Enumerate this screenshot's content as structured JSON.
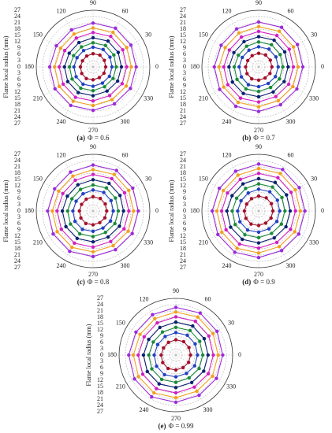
{
  "charts": [
    {
      "chart_data": {
        "type": "polar",
        "label": "(a)",
        "caption": "Φ = 0.6",
        "y_label": "Flame local radius (mm)",
        "theta": [
          0,
          30,
          60,
          90,
          120,
          150,
          180,
          210,
          240,
          270,
          300,
          330
        ],
        "rlim": [
          0,
          27
        ],
        "rticks": [
          0,
          3,
          6,
          9,
          12,
          15,
          18,
          21,
          24,
          27
        ],
        "grid": true,
        "series": [
          {
            "color": "#a3102c",
            "values": [
              6,
              6.2,
              6.5,
              6.3,
              6,
              5.8,
              6,
              6.2,
              6.4,
              6.1,
              5.9,
              6
            ]
          },
          {
            "color": "#2140c0",
            "values": [
              9,
              9.3,
              9.6,
              9.4,
              9,
              8.8,
              9.1,
              9.3,
              9.5,
              9.2,
              8.9,
              9
            ]
          },
          {
            "color": "#1a8a3a",
            "values": [
              11,
              11.4,
              11.8,
              11.5,
              11,
              10.7,
              11.2,
              11.5,
              11.7,
              11.3,
              10.9,
              11
            ]
          },
          {
            "color": "#0b2070",
            "values": [
              13.5,
              13.8,
              14.2,
              13.9,
              13.4,
              13.1,
              13.6,
              13.9,
              14.1,
              13.7,
              13.3,
              13.5
            ]
          },
          {
            "color": "#d020c0",
            "values": [
              16,
              16.3,
              16.8,
              16.4,
              15.9,
              15.6,
              16.1,
              16.4,
              16.7,
              16.2,
              15.8,
              16
            ]
          },
          {
            "color": "#f0a020",
            "values": [
              18.2,
              18.5,
              19,
              18.6,
              18.1,
              17.8,
              18.3,
              18.6,
              18.9,
              18.4,
              18,
              18.2
            ]
          },
          {
            "color": "#9a2ad8",
            "values": [
              20.5,
              20.8,
              21.3,
              20.9,
              20.4,
              20.1,
              20.6,
              20.9,
              21.2,
              20.7,
              20.3,
              20.5
            ]
          }
        ]
      }
    },
    {
      "chart_data": {
        "type": "polar",
        "label": "(b)",
        "caption": "Φ = 0.7",
        "y_label": "Flame local radius (mm)",
        "theta": [
          0,
          30,
          60,
          90,
          120,
          150,
          180,
          210,
          240,
          270,
          300,
          330
        ],
        "rlim": [
          0,
          27
        ],
        "rticks": [
          0,
          3,
          6,
          9,
          12,
          15,
          18,
          21,
          24,
          27
        ],
        "grid": true,
        "series": [
          {
            "color": "#a3102c",
            "values": [
              6.3,
              6.4,
              6.6,
              6.5,
              6.2,
              6,
              6.2,
              6.4,
              6.6,
              6.3,
              6.1,
              6.2
            ]
          },
          {
            "color": "#2140c0",
            "values": [
              9.3,
              9.5,
              9.8,
              9.6,
              9.2,
              9,
              9.3,
              9.5,
              9.8,
              9.4,
              9.1,
              9.2
            ]
          },
          {
            "color": "#1a8a3a",
            "values": [
              11.5,
              11.8,
              12.2,
              11.9,
              11.4,
              11.1,
              11.6,
              11.9,
              12.1,
              11.7,
              11.3,
              11.4
            ]
          },
          {
            "color": "#0b2070",
            "values": [
              14,
              14.3,
              14.7,
              14.4,
              13.9,
              13.6,
              14.1,
              14.4,
              14.6,
              14.2,
              13.8,
              14
            ]
          },
          {
            "color": "#d020c0",
            "values": [
              16.5,
              16.8,
              17.3,
              16.9,
              16.4,
              16.1,
              16.6,
              16.9,
              17.2,
              16.7,
              16.3,
              16.5
            ]
          },
          {
            "color": "#f0a020",
            "values": [
              18.8,
              19.1,
              19.6,
              19.2,
              18.7,
              18.4,
              18.9,
              19.2,
              19.5,
              19,
              18.6,
              18.8
            ]
          },
          {
            "color": "#9a2ad8",
            "values": [
              21,
              21.3,
              21.8,
              21.4,
              20.9,
              20.6,
              21.1,
              21.4,
              21.7,
              21.2,
              20.8,
              21
            ]
          }
        ]
      }
    },
    {
      "chart_data": {
        "type": "polar",
        "label": "(c)",
        "caption": "Φ = 0.8",
        "y_label": "Flame local radius (mm)",
        "theta": [
          0,
          30,
          60,
          90,
          120,
          150,
          180,
          210,
          240,
          270,
          300,
          330
        ],
        "rlim": [
          0,
          27
        ],
        "rticks": [
          0,
          3,
          6,
          9,
          12,
          15,
          18,
          21,
          24,
          27
        ],
        "grid": true,
        "series": [
          {
            "color": "#a3102c",
            "values": [
              6.5,
              6.7,
              6.9,
              6.8,
              6.5,
              6.3,
              6.5,
              6.7,
              6.9,
              6.6,
              6.4,
              6.5
            ]
          },
          {
            "color": "#2140c0",
            "values": [
              9.6,
              9.9,
              10.2,
              10,
              9.5,
              9.3,
              9.6,
              9.9,
              10.1,
              9.7,
              9.4,
              9.6
            ]
          },
          {
            "color": "#1a8a3a",
            "values": [
              12,
              12.3,
              12.7,
              12.4,
              11.9,
              11.6,
              12.1,
              12.4,
              12.6,
              12.2,
              11.8,
              12
            ]
          },
          {
            "color": "#0b2070",
            "values": [
              14.5,
              14.8,
              15.2,
              14.9,
              14.4,
              14.1,
              14.6,
              14.9,
              15.1,
              14.7,
              14.3,
              14.5
            ]
          },
          {
            "color": "#d020c0",
            "values": [
              17,
              17.3,
              17.8,
              17.4,
              16.9,
              16.6,
              17.1,
              17.4,
              17.7,
              17.2,
              16.8,
              17
            ]
          },
          {
            "color": "#f0a020",
            "values": [
              19.3,
              19.6,
              20.1,
              19.7,
              19.2,
              18.9,
              19.4,
              19.7,
              20,
              19.5,
              19.1,
              19.3
            ]
          },
          {
            "color": "#9a2ad8",
            "values": [
              21.5,
              21.8,
              22.3,
              21.9,
              21.4,
              21.1,
              21.6,
              21.9,
              22.2,
              21.7,
              21.3,
              21.5
            ]
          }
        ]
      }
    },
    {
      "chart_data": {
        "type": "polar",
        "label": "(d)",
        "caption": "Φ = 0.9",
        "y_label": "Flame local radius (mm)",
        "theta": [
          0,
          30,
          60,
          90,
          120,
          150,
          180,
          210,
          240,
          270,
          300,
          330
        ],
        "rlim": [
          0,
          27
        ],
        "rticks": [
          0,
          3,
          6,
          9,
          12,
          15,
          18,
          21,
          24,
          27
        ],
        "grid": true,
        "series": [
          {
            "color": "#a3102c",
            "values": [
              6.8,
              7,
              7.2,
              7.1,
              6.8,
              6.6,
              6.8,
              7,
              7.2,
              6.9,
              6.7,
              6.8
            ]
          },
          {
            "color": "#2140c0",
            "values": [
              10,
              10.3,
              10.6,
              10.4,
              9.9,
              9.7,
              10,
              10.3,
              10.5,
              10.1,
              9.8,
              10
            ]
          },
          {
            "color": "#1a8a3a",
            "values": [
              12.5,
              12.8,
              13.2,
              12.9,
              12.4,
              12.1,
              12.6,
              12.9,
              13.1,
              12.7,
              12.3,
              12.5
            ]
          },
          {
            "color": "#0b2070",
            "values": [
              15,
              15.3,
              15.7,
              15.4,
              14.9,
              14.6,
              15.1,
              15.4,
              15.6,
              15.2,
              14.8,
              15
            ]
          },
          {
            "color": "#d020c0",
            "values": [
              17.5,
              17.8,
              18.3,
              17.9,
              17.4,
              17.1,
              17.6,
              17.9,
              18.2,
              17.7,
              17.3,
              17.5
            ]
          },
          {
            "color": "#f0a020",
            "values": [
              19.8,
              20.1,
              20.6,
              20.2,
              19.7,
              19.4,
              19.9,
              20.2,
              20.5,
              20,
              19.6,
              19.8
            ]
          },
          {
            "color": "#9a2ad8",
            "values": [
              22,
              22.3,
              22.8,
              22.4,
              21.9,
              21.6,
              22.1,
              22.4,
              22.7,
              22.2,
              21.8,
              22
            ]
          }
        ]
      }
    },
    {
      "chart_data": {
        "type": "polar",
        "label": "(e)",
        "caption": "Φ = 0.99",
        "y_label": "Flame local radius (mm)",
        "theta": [
          0,
          30,
          60,
          90,
          120,
          150,
          180,
          210,
          240,
          270,
          300,
          330
        ],
        "rlim": [
          0,
          27
        ],
        "rticks": [
          0,
          3,
          6,
          9,
          12,
          15,
          18,
          21,
          24,
          27
        ],
        "grid": true,
        "series": [
          {
            "color": "#a3102c",
            "values": [
              7,
              7.2,
              7.4,
              7.3,
              7,
              6.8,
              7,
              7.2,
              7.4,
              7.1,
              6.9,
              7
            ]
          },
          {
            "color": "#2140c0",
            "values": [
              10.3,
              10.6,
              10.9,
              10.7,
              10.2,
              10,
              10.3,
              10.6,
              10.8,
              10.4,
              10.1,
              10.3
            ]
          },
          {
            "color": "#1a8a3a",
            "values": [
              12.8,
              13.1,
              13.5,
              13.2,
              12.7,
              12.4,
              12.9,
              13.2,
              13.4,
              13,
              12.6,
              12.8
            ]
          },
          {
            "color": "#0b2070",
            "values": [
              15.3,
              15.6,
              16,
              15.7,
              15.2,
              14.9,
              15.4,
              15.7,
              15.9,
              15.5,
              15.1,
              15.3
            ]
          },
          {
            "color": "#d020c0",
            "values": [
              17.8,
              18.1,
              18.6,
              18.2,
              17.7,
              17.4,
              17.9,
              18.2,
              18.5,
              18,
              17.6,
              17.8
            ]
          },
          {
            "color": "#f0a020",
            "values": [
              20.1,
              20.4,
              20.9,
              20.5,
              20,
              19.7,
              20.2,
              20.5,
              20.8,
              20.3,
              19.9,
              20.1
            ]
          },
          {
            "color": "#9a2ad8",
            "values": [
              22.3,
              22.6,
              23.1,
              22.7,
              22.2,
              21.9,
              22.4,
              22.7,
              23,
              22.5,
              22.1,
              22.3
            ]
          }
        ]
      }
    }
  ]
}
